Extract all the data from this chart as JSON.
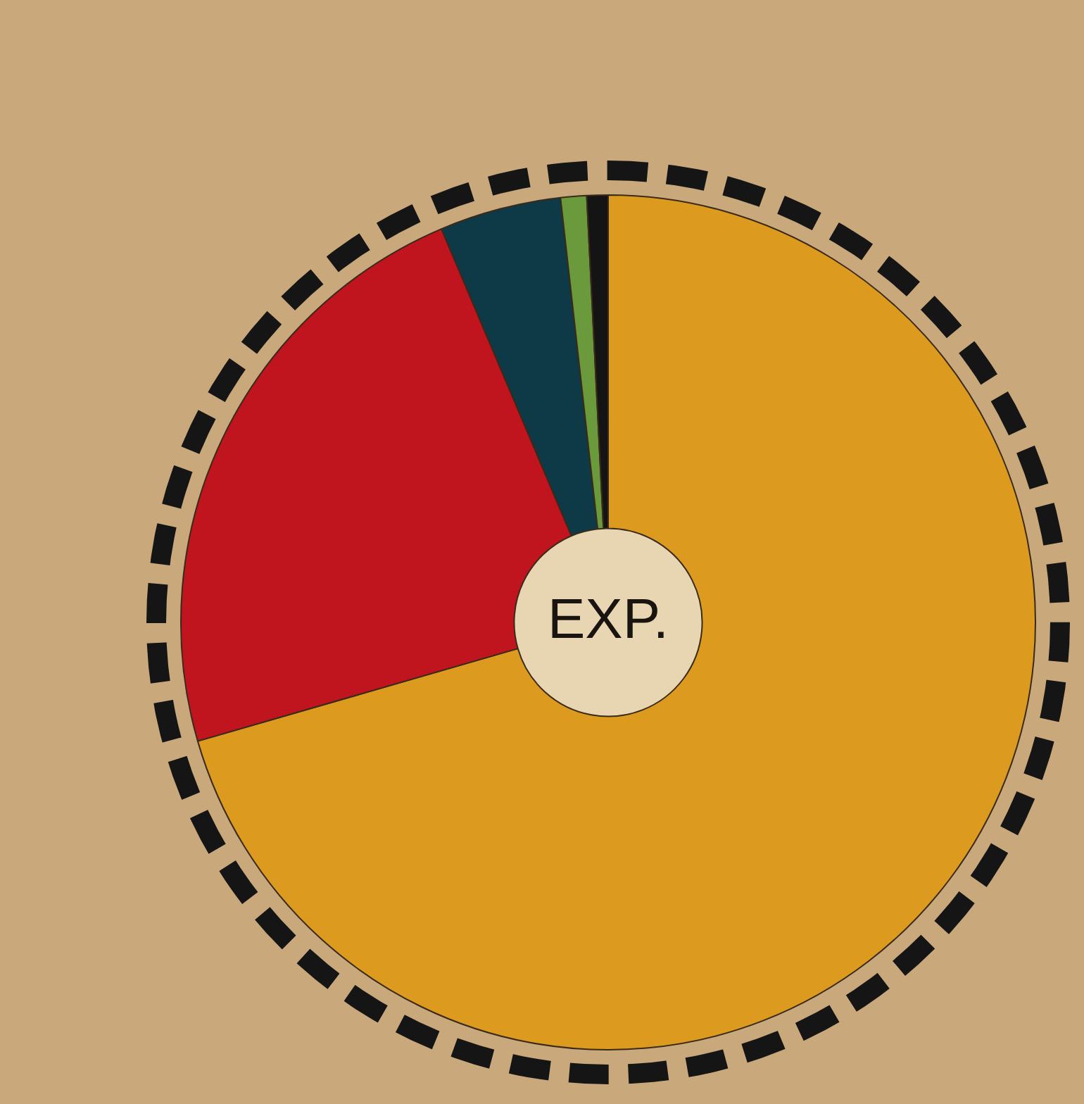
{
  "chart_data": {
    "type": "donut",
    "categories": [
      null,
      null,
      null,
      null,
      null
    ],
    "values": [
      70.52,
      23.1,
      4.6,
      0.98,
      0.8
    ],
    "colors": [
      "#dc9a1e",
      "#c0141e",
      "#0e3a48",
      "#6a9a3c",
      "#141414"
    ],
    "annotations": [
      "EXP."
    ],
    "legend": false
  }
}
